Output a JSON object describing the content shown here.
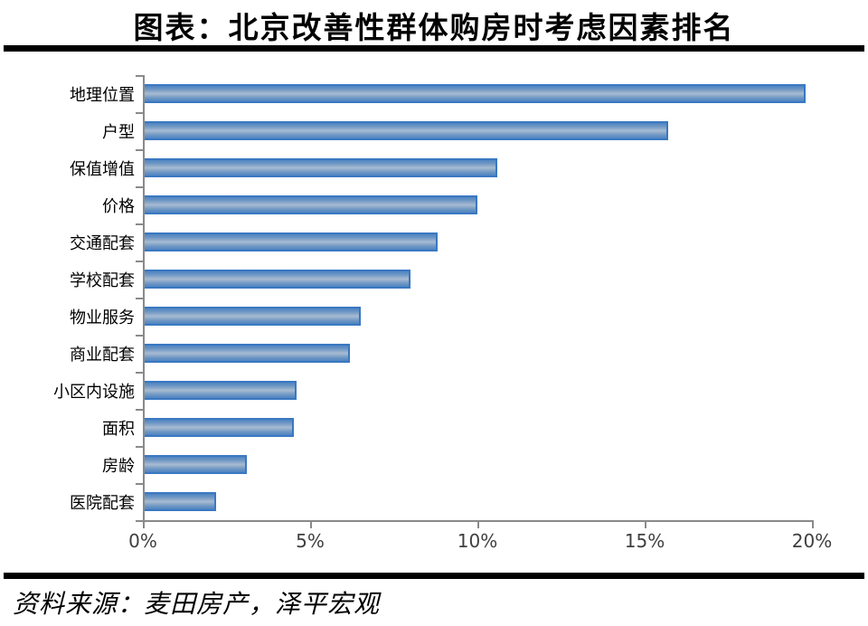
{
  "title": "图表：北京改善性群体购房时考虑因素排名",
  "source": "资料来源：麦田房产，泽平宏观",
  "colors": {
    "bar_border": "#3a78c2",
    "bar_edge": "#4e84c2",
    "bar_mid": "#a8bcd2",
    "axis": "#8a8a8a",
    "divider": "#000000",
    "tick_text": "#3f3f3f"
  },
  "chart_data": {
    "type": "bar",
    "orientation": "horizontal",
    "title": "图表：北京改善性群体购房时考虑因素排名",
    "categories": [
      "地理位置",
      "户型",
      "保值增值",
      "价格",
      "交通配套",
      "学校配套",
      "物业服务",
      "商业配套",
      "小区内设施",
      "面积",
      "房龄",
      "医院配套"
    ],
    "values": [
      19.8,
      15.7,
      10.6,
      10.0,
      8.8,
      8.0,
      6.5,
      6.2,
      4.6,
      4.5,
      3.1,
      2.2
    ],
    "unit": "%",
    "xlim": [
      0,
      20
    ],
    "x_ticks": [
      0,
      5,
      10,
      15,
      20
    ],
    "x_tick_labels": [
      "0%",
      "5%",
      "10%",
      "15%",
      "20%"
    ],
    "grid": false,
    "legend": false
  }
}
